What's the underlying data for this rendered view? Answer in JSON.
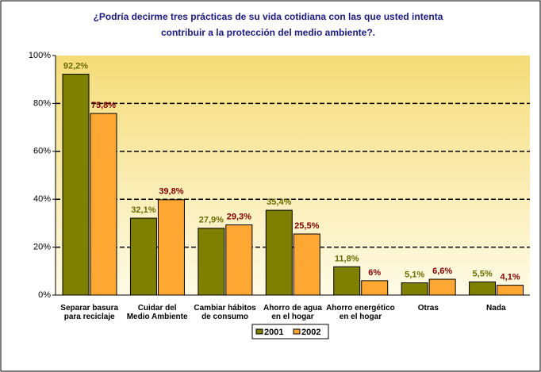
{
  "chart_data": {
    "type": "bar",
    "title": [
      "¿Podría decirme tres prácticas de su vida cotidiana con las que usted intenta",
      "contribuir a la protección del medio ambiente?."
    ],
    "categories": [
      [
        "Separar basura",
        "para reciclaje"
      ],
      [
        "Cuidar del",
        "Medio Ambiente"
      ],
      [
        "Cambiar hábitos",
        "de consumo"
      ],
      [
        "Ahorro de agua",
        "en el hogar"
      ],
      [
        "Ahorro energético",
        "en el hogar"
      ],
      [
        "Otras"
      ],
      [
        "Nada"
      ]
    ],
    "series": [
      {
        "name": "2001",
        "color": "#808000",
        "label_color": "#6b6b00",
        "values": [
          92.2,
          32.1,
          27.9,
          35.4,
          11.8,
          5.1,
          5.5
        ],
        "value_labels": [
          "92,2%",
          "32,1%",
          "27,9%",
          "35,4%",
          "11,8%",
          "5,1%",
          "5,5%"
        ]
      },
      {
        "name": "2002",
        "color": "#ffa733",
        "label_color": "#800000",
        "values": [
          75.8,
          39.8,
          29.3,
          25.5,
          6,
          6.6,
          4.1
        ],
        "value_labels": [
          "75,8%",
          "39,8%",
          "29,3%",
          "25,5%",
          "6%",
          "6,6%",
          "4,1%"
        ]
      }
    ],
    "ylim": [
      0,
      100
    ],
    "yticks": [
      {
        "value": 0,
        "label": "0%"
      },
      {
        "value": 20,
        "label": "20%"
      },
      {
        "value": 40,
        "label": "40%"
      },
      {
        "value": 60,
        "label": "60%"
      },
      {
        "value": 80,
        "label": "80%"
      },
      {
        "value": 100,
        "label": "100%"
      }
    ],
    "grid": true,
    "legend": "bottom"
  }
}
